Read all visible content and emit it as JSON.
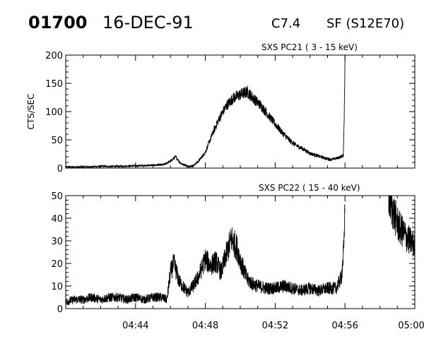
{
  "header": {
    "event_id": "01700",
    "date": "16-DEC-91",
    "flare_class": "C7.4",
    "location": "SF (S12E70)"
  },
  "chart_data": [
    {
      "type": "line",
      "title": "SXS PC21  (  3 - 15 keV)",
      "ylabel": "CTS/SEC",
      "ylim": [
        0,
        200
      ],
      "yticks": [
        "0",
        "50",
        "100",
        "150",
        "200"
      ],
      "xlim_minutes": [
        0,
        20
      ],
      "xticks": [
        {
          "t": 4,
          "label": "04:44"
        },
        {
          "t": 8,
          "label": "04:48"
        },
        {
          "t": 12,
          "label": "04:52"
        },
        {
          "t": 16,
          "label": "04:56"
        },
        {
          "t": 20,
          "label": "05:00"
        }
      ],
      "series": [
        {
          "x": [
            0,
            1,
            2,
            3,
            4,
            5,
            5.6,
            6,
            6.3,
            6.6,
            7,
            7.3,
            7.6,
            8,
            8.4,
            8.8,
            9.2,
            9.6,
            10,
            10.4,
            10.8,
            11.2,
            11.6,
            12,
            12.4,
            12.8,
            13.2,
            13.6,
            14,
            14.4,
            14.8,
            15.2,
            15.6,
            15.9,
            15.95,
            16
          ],
          "y": [
            2,
            2,
            3,
            3,
            4,
            5,
            6,
            12,
            20,
            8,
            3,
            4,
            12,
            28,
            60,
            88,
            110,
            124,
            130,
            135,
            122,
            110,
            94,
            78,
            63,
            50,
            40,
            34,
            26,
            22,
            18,
            15,
            18,
            22,
            80,
            200
          ]
        }
      ]
    },
    {
      "type": "line",
      "title": "SXS PC22  ( 15 - 40 keV)",
      "ylabel": "",
      "ylim": [
        0,
        50
      ],
      "yticks": [
        "0",
        "10",
        "20",
        "30",
        "40",
        "50"
      ],
      "xlim_minutes": [
        0,
        20
      ],
      "xticks": [
        {
          "t": 4,
          "label": "04:44"
        },
        {
          "t": 8,
          "label": "04:48"
        },
        {
          "t": 12,
          "label": "04:52"
        },
        {
          "t": 16,
          "label": "04:56"
        },
        {
          "t": 20,
          "label": "05:00"
        }
      ],
      "series": [
        {
          "x": [
            0,
            0.5,
            1,
            1.5,
            2,
            2.5,
            3,
            3.5,
            4,
            4.5,
            5,
            5.5,
            5.8,
            6,
            6.2,
            6.5,
            7,
            7.3,
            7.6,
            8,
            8.3,
            8.6,
            8.9,
            9.2,
            9.5,
            9.8,
            10.1,
            10.4,
            10.7,
            11,
            11.5,
            12,
            12.5,
            13,
            13.5,
            14,
            14.5,
            15,
            15.5,
            15.8,
            15.95,
            16
          ],
          "y": [
            3,
            4,
            4,
            5,
            4,
            5,
            5,
            4,
            5,
            4,
            5,
            5,
            4,
            16,
            20,
            12,
            7,
            10,
            14,
            22,
            19,
            21,
            16,
            24,
            31,
            27,
            19,
            13,
            11,
            10,
            9,
            9,
            10,
            9,
            8,
            9,
            8,
            9,
            9,
            14,
            28,
            50
          ]
        },
        {
          "x": [
            18.5,
            18.8,
            19.1,
            19.4,
            19.7,
            20
          ],
          "y": [
            50,
            42,
            36,
            33,
            30,
            28
          ]
        }
      ]
    }
  ]
}
